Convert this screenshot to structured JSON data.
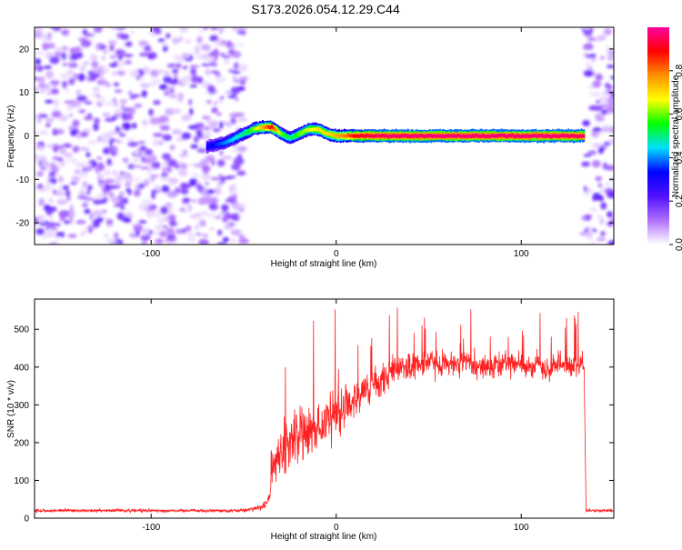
{
  "chart_data": [
    {
      "type": "heatmap",
      "title": "S173.2026.054.12.29.C44",
      "xlabel": "Height of straight line (km)",
      "ylabel": "Frequency (Hz)",
      "xlim": [
        -163,
        150
      ],
      "ylim": [
        -25,
        25
      ],
      "xticks": [
        "-100",
        "0",
        "100"
      ],
      "xtick_values": [
        -100,
        0,
        100
      ],
      "yticks": [
        "-20",
        "-10",
        "0",
        "10",
        "20"
      ],
      "ytick_values": [
        -20,
        -10,
        0,
        10,
        20
      ],
      "colorbar": {
        "label": "Normalized spectral amplitude",
        "range": [
          0,
          1
        ],
        "ticks": [
          "0.0",
          "0.2",
          "0.4",
          "0.6",
          "0.8"
        ],
        "tick_values": [
          0.0,
          0.2,
          0.4,
          0.6,
          0.8
        ],
        "colors": [
          "#ffffff",
          "#b070ff",
          "#5010ff",
          "#0000ff",
          "#00e0ff",
          "#00ff00",
          "#ffff00",
          "#ff9000",
          "#ff0000",
          "#ff00a0"
        ]
      },
      "noise_regions": [
        [
          -163,
          -50
        ],
        [
          134,
          150
        ]
      ],
      "ridge": {
        "x": [
          -70,
          -65,
          -60,
          -55,
          -50,
          -45,
          -40,
          -35,
          -30,
          -25,
          -20,
          -15,
          -10,
          -5,
          0,
          5,
          10,
          20,
          40,
          60,
          80,
          100,
          120,
          134
        ],
        "freq": [
          -2.5,
          -2,
          -1.5,
          -0.5,
          0.5,
          1.5,
          2,
          2,
          0.5,
          -0.5,
          0.5,
          1.5,
          1.5,
          0.5,
          0,
          0,
          0,
          0,
          0,
          0,
          0,
          0,
          0,
          0
        ],
        "amplitude": [
          0.3,
          0.35,
          0.4,
          0.45,
          0.5,
          0.6,
          0.75,
          0.9,
          0.6,
          0.5,
          0.6,
          0.65,
          0.7,
          0.7,
          0.75,
          0.8,
          0.9,
          0.95,
          0.97,
          0.97,
          0.97,
          0.97,
          0.97,
          0.95
        ]
      }
    },
    {
      "type": "line",
      "title": "",
      "xlabel": "Height of straight line (km)",
      "ylabel": "SNR (10 * v/v)",
      "xlim": [
        -163,
        150
      ],
      "ylim": [
        0,
        580
      ],
      "xticks": [
        "-100",
        "0",
        "100"
      ],
      "xtick_values": [
        -100,
        0,
        100
      ],
      "yticks": [
        "0",
        "100",
        "200",
        "300",
        "400",
        "500"
      ],
      "ytick_values": [
        0,
        100,
        200,
        300,
        400,
        500
      ],
      "color": "#ff2020",
      "series": [
        {
          "name": "SNR",
          "x": [
            -163,
            -150,
            -140,
            -130,
            -120,
            -110,
            -100,
            -90,
            -80,
            -70,
            -60,
            -50,
            -45,
            -40,
            -36,
            -35,
            -33,
            -30,
            -25,
            -20,
            -15,
            -10,
            -5,
            0,
            5,
            10,
            15,
            20,
            25,
            30,
            35,
            40,
            45,
            50,
            55,
            60,
            65,
            70,
            75,
            80,
            85,
            90,
            95,
            100,
            105,
            110,
            115,
            120,
            125,
            130,
            134,
            135,
            136,
            140,
            145,
            150
          ],
          "values": [
            20,
            20,
            20,
            20,
            20,
            20,
            20,
            20,
            20,
            20,
            20,
            20,
            25,
            30,
            50,
            120,
            160,
            180,
            200,
            210,
            225,
            240,
            260,
            275,
            295,
            315,
            330,
            350,
            370,
            385,
            395,
            400,
            405,
            410,
            405,
            410,
            405,
            410,
            405,
            408,
            400,
            410,
            405,
            410,
            400,
            405,
            395,
            410,
            400,
            405,
            400,
            20,
            20,
            20,
            20,
            20
          ],
          "spread": [
            8,
            8,
            8,
            8,
            8,
            8,
            8,
            8,
            8,
            8,
            8,
            8,
            10,
            15,
            30,
            100,
            110,
            120,
            130,
            130,
            130,
            130,
            120,
            120,
            110,
            100,
            100,
            90,
            80,
            80,
            70,
            65,
            65,
            60,
            60,
            60,
            60,
            60,
            60,
            60,
            60,
            60,
            60,
            60,
            60,
            60,
            60,
            60,
            60,
            60,
            60,
            8,
            8,
            8,
            8,
            8
          ]
        }
      ]
    }
  ]
}
